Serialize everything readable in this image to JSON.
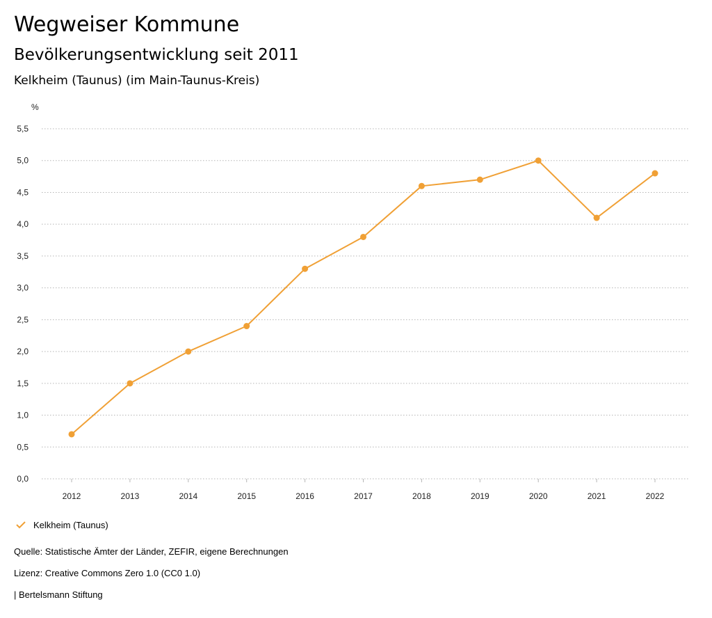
{
  "header": {
    "title": "Wegweiser Kommune",
    "subtitle": "Bevölkerungsentwicklung seit 2011",
    "place": "Kelkheim (Taunus) (im Main-Taunus-Kreis)"
  },
  "chart_data": {
    "type": "line",
    "unit_label": "%",
    "x": [
      "2012",
      "2013",
      "2014",
      "2015",
      "2016",
      "2017",
      "2018",
      "2019",
      "2020",
      "2021",
      "2022"
    ],
    "series": [
      {
        "name": "Kelkheim (Taunus)",
        "values": [
          0.7,
          1.5,
          2.0,
          2.4,
          3.3,
          3.8,
          4.6,
          4.7,
          5.0,
          4.1,
          4.8
        ]
      }
    ],
    "ylim": [
      0,
      5.5
    ],
    "yticks": [
      "0,0",
      "0,5",
      "1,0",
      "1,5",
      "2,0",
      "2,5",
      "3,0",
      "3,5",
      "4,0",
      "4,5",
      "5,0",
      "5,5"
    ],
    "grid": true,
    "color": "#f0a035"
  },
  "legend": {
    "label": "Kelkheim (Taunus)"
  },
  "footer": {
    "source": "Quelle: Statistische Ämter der Länder, ZEFIR, eigene Berechnungen",
    "license": "Lizenz: Creative Commons Zero 1.0 (CC0 1.0)",
    "publisher": "| Bertelsmann Stiftung"
  }
}
